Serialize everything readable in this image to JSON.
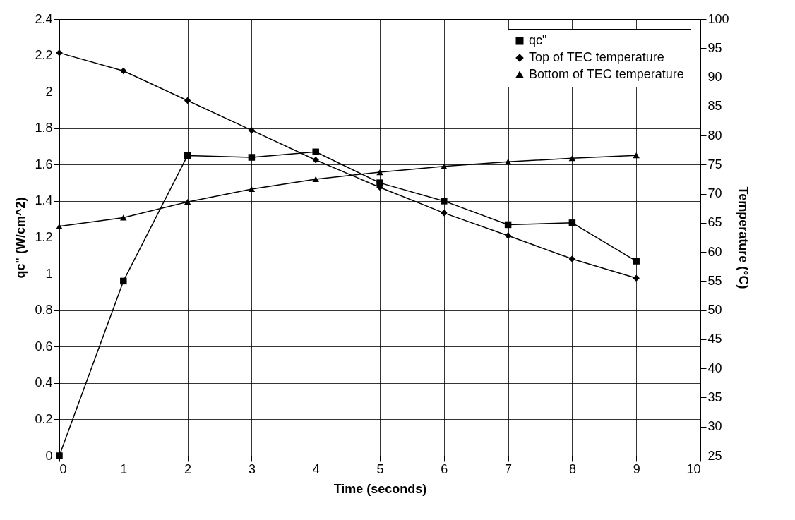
{
  "chart_data": {
    "type": "line",
    "xlabel": "Time (seconds)",
    "ylabel": "qc\" (W/cm^2)",
    "y2label": "Temperature (°C)",
    "x": [
      0,
      1,
      2,
      3,
      4,
      5,
      6,
      7,
      8,
      9
    ],
    "series": [
      {
        "name": "qc\"",
        "color": "#000000",
        "marker": "square",
        "values": [
          0,
          0.96,
          1.65,
          1.64,
          1.67,
          1.5,
          1.4,
          1.27,
          1.28,
          1.07
        ]
      },
      {
        "name": "Top of TEC temperature",
        "color": "#000000",
        "marker": "diamond",
        "axis": "y2",
        "values": [
          94.2,
          91.1,
          86.0,
          80.9,
          75.8,
          71.1,
          66.7,
          62.8,
          58.8,
          55.5
        ]
      },
      {
        "name": "Bottom of TEC temperature",
        "color": "#000000",
        "marker": "triangle",
        "axis": "y2",
        "values": [
          64.4,
          65.9,
          68.6,
          70.8,
          72.5,
          73.7,
          74.7,
          75.5,
          76.1,
          76.6
        ]
      }
    ],
    "xlim": [
      0,
      10
    ],
    "xticks": [
      0,
      1,
      2,
      3,
      4,
      5,
      6,
      7,
      8,
      9,
      10
    ],
    "ylim": [
      0,
      2.4
    ],
    "yticks": [
      0,
      0.2,
      0.4,
      0.6,
      0.8,
      1,
      1.2,
      1.4,
      1.6,
      1.8,
      2,
      2.2,
      2.4
    ],
    "y2lim": [
      25,
      100
    ],
    "y2ticks": [
      25,
      30,
      35,
      40,
      45,
      50,
      55,
      60,
      65,
      70,
      75,
      80,
      85,
      90,
      95,
      100
    ],
    "grid": true,
    "legend": "top right",
    "line_style": "solid"
  }
}
